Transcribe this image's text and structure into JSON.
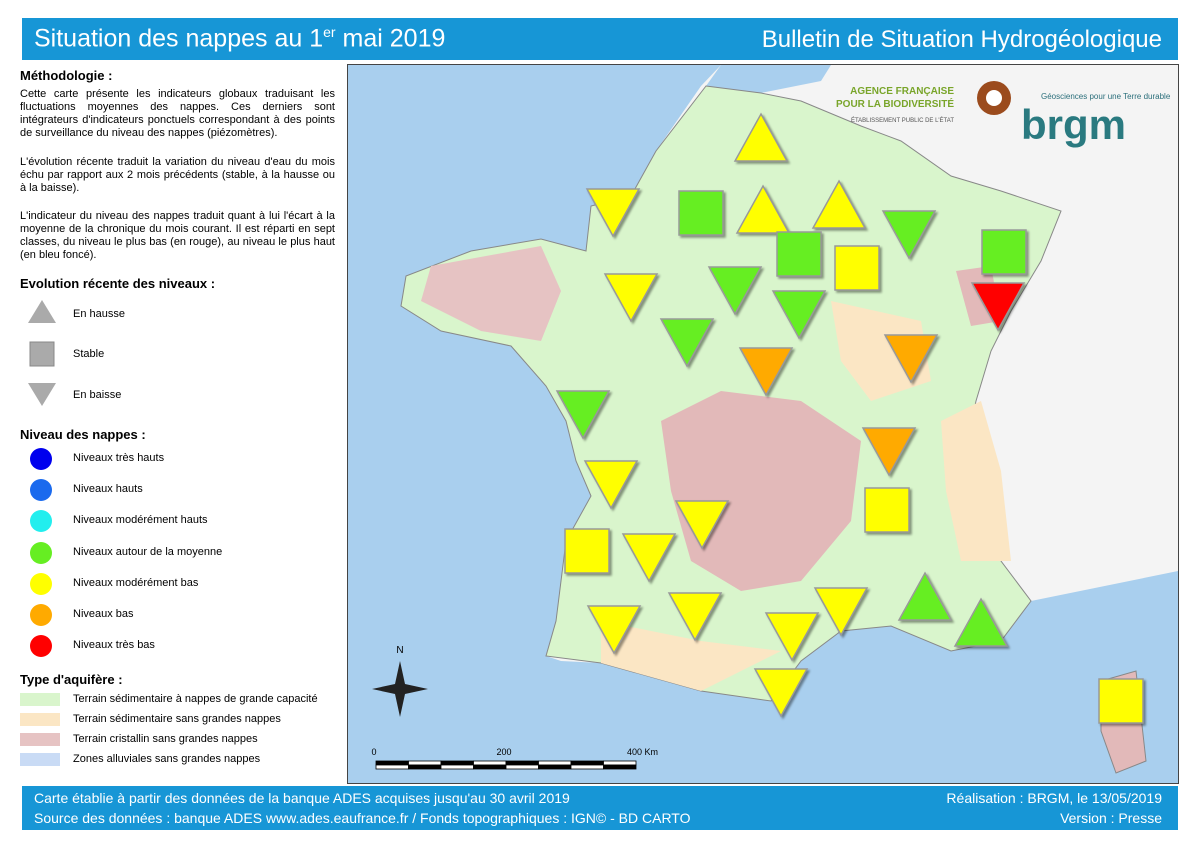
{
  "header": {
    "title": {
      "text": "Situation des nappes au 1",
      "sup": "er",
      "rest": "mai 2019"
    },
    "bulletin": "Bulletin de Situation Hydrogéologique"
  },
  "methodology": {
    "heading": "Méthodologie :",
    "paragraphs": [
      "Cette carte présente les indicateurs globaux traduisant les fluctuations moyennes des nappes. Ces derniers sont intégrateurs d'indicateurs ponctuels correspondant à des points de surveillance du niveau des nappes (piézomètres).",
      "L'évolution récente traduit la variation du niveau d'eau du mois échu par rapport aux 2 mois précédents (stable, à la hausse ou à la baisse).",
      "L'indicateur du niveau des nappes traduit quant à lui l'écart à la moyenne de la chronique du mois courant. Il est réparti en sept classes, du niveau le plus bas (en rouge), au niveau le plus haut (en bleu foncé)."
    ]
  },
  "legend": {
    "trend": {
      "heading": "Evolution récente des niveaux :",
      "items": [
        "En hausse",
        "Stable",
        "En baisse"
      ]
    },
    "level": {
      "heading": "Niveau des nappes :",
      "items": [
        "Niveaux très hauts",
        "Niveaux hauts",
        "Niveaux modérément hauts",
        "Niveaux autour de la moyenne",
        "Niveaux modérément bas",
        "Niveaux bas",
        "Niveaux très bas"
      ]
    },
    "aquifer": {
      "heading": "Type d'aquifère :",
      "items": [
        "Terrain sédimentaire à nappes de grande capacité",
        "Terrain sédimentaire sans grandes nappes",
        "Terrain cristallin sans grandes nappes",
        "Zones alluviales sans grandes nappes"
      ]
    }
  },
  "logos": {
    "afb_line1": "AGENCE FRANÇAISE",
    "afb_line2": "POUR LA BIODIVERSITÉ",
    "afb_sub": "ÉTABLISSEMENT PUBLIC DE L'ÉTAT",
    "brgm_tagline": "Géosciences pour une Terre durable",
    "brgm": "brgm"
  },
  "map": {
    "north": "N",
    "scale": [
      "0",
      "200",
      "400 Km"
    ]
  },
  "footer": {
    "left": [
      "Carte établie à partir des données de la banque ADES acquises jusqu'au 30 avril 2019",
      "Source des données : banque ADES www.ades.eaufrance.fr / Fonds topographiques : IGN© - BD CARTO"
    ],
    "right": [
      "Réalisation : BRGM, le 13/05/2019",
      "Version : Presse"
    ]
  }
}
